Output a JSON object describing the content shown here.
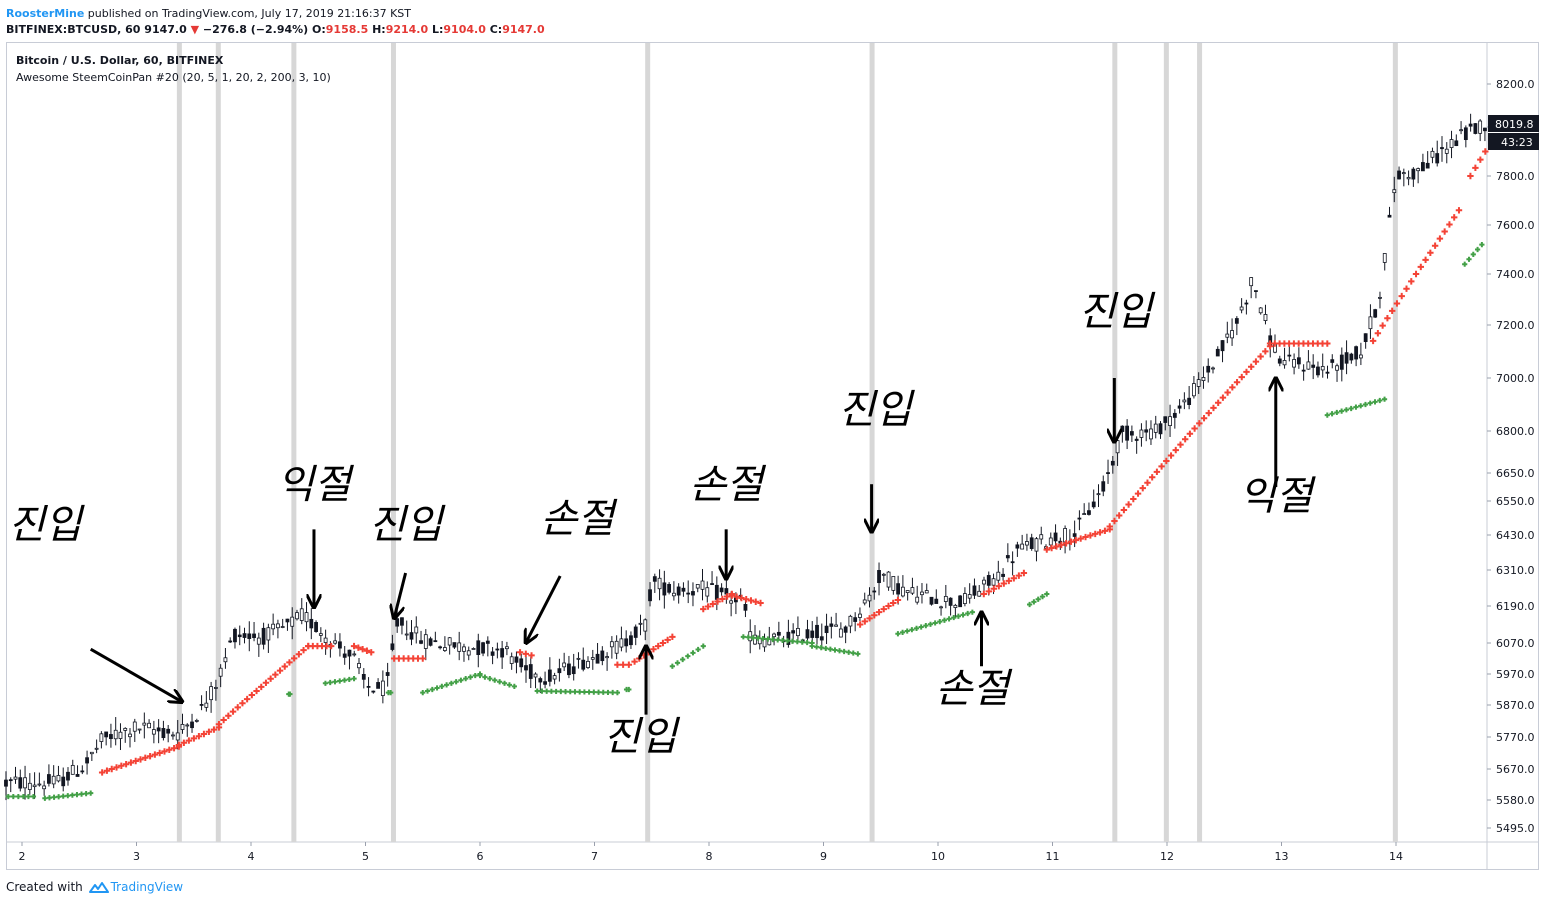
{
  "header": {
    "user": "RoosterMine",
    "published_text": "published on TradingView.com, July 17, 2019 21:16:37 KST"
  },
  "symbol_bar": {
    "symbol": "BITFINEX:BTCUSD, 60",
    "last": "9147.0",
    "change": "−276.8 (−2.94%)",
    "open_label": "O:",
    "open": "9158.5",
    "high_label": "H:",
    "high": "9214.0",
    "low_label": "L:",
    "low": "9104.0",
    "close_label": "C:",
    "close": "9147.0"
  },
  "legend": {
    "title": "Bitcoin / U.S. Dollar, 60, BITFINEX",
    "indicator": "Awesome SteemCoinPan #20 (20, 5, 1, 20, 2, 200, 3, 10)"
  },
  "price_badge": "8019.8",
  "timer_badge": "43:23",
  "footer": {
    "created_with": "Created with",
    "brand": "TradingView"
  },
  "colors": {
    "candle": "#131722",
    "sar_bear": "#f44336",
    "sar_bull": "#43a047",
    "highlight_bars": "#d7d7d7",
    "arrow": "#000000",
    "down_triangle": "#e53935"
  },
  "chart_data": {
    "type": "candlestick",
    "x_label_unit": "day of month",
    "yticks": [
      5495,
      5580,
      5670,
      5770,
      5870,
      5970,
      6070,
      6190,
      6310,
      6430,
      6550,
      6650,
      6800,
      7000,
      7200,
      7400,
      7600,
      7800,
      8000,
      8200
    ],
    "ytick_labels": [
      "5495.0",
      "5580.0",
      "5670.0",
      "5770.0",
      "5870.0",
      "5970.0",
      "6070.0",
      "6190.0",
      "6310.0",
      "6430.0",
      "6550.0",
      "6650.0",
      "6800.0",
      "7000.0",
      "7200.0",
      "7400.0",
      "7600.0",
      "7800.0",
      "8000.0",
      "8200.0"
    ],
    "xtick_days": [
      2,
      3,
      4,
      5,
      6,
      7,
      8,
      9,
      10,
      11,
      12,
      13,
      14
    ],
    "xtick_labels": [
      "2",
      "3",
      "4",
      "5",
      "6",
      "7",
      "8",
      "9",
      "10",
      "11",
      "12",
      "13",
      "14"
    ],
    "x_range": [
      1.86,
      14.85
    ],
    "highlight_days": [
      3.37,
      3.71,
      4.37,
      5.24,
      7.46,
      9.42,
      11.54,
      11.99,
      12.28,
      13.99
    ],
    "price_path": [
      [
        1.86,
        5630
      ],
      [
        2.3,
        5630
      ],
      [
        2.55,
        5680
      ],
      [
        2.7,
        5760
      ],
      [
        3.0,
        5800
      ],
      [
        3.37,
        5780
      ],
      [
        3.6,
        5870
      ],
      [
        3.72,
        5960
      ],
      [
        3.85,
        6100
      ],
      [
        4.1,
        6090
      ],
      [
        4.3,
        6120
      ],
      [
        4.45,
        6160
      ],
      [
        4.7,
        6080
      ],
      [
        4.9,
        6020
      ],
      [
        5.0,
        5930
      ],
      [
        5.18,
        5920
      ],
      [
        5.28,
        6140
      ],
      [
        5.5,
        6080
      ],
      [
        5.8,
        6060
      ],
      [
        6.2,
        6050
      ],
      [
        6.4,
        5980
      ],
      [
        6.6,
        5960
      ],
      [
        6.9,
        6010
      ],
      [
        7.25,
        6070
      ],
      [
        7.45,
        6130
      ],
      [
        7.5,
        6270
      ],
      [
        7.7,
        6240
      ],
      [
        7.9,
        6250
      ],
      [
        8.1,
        6230
      ],
      [
        8.3,
        6200
      ],
      [
        8.37,
        6080
      ],
      [
        8.6,
        6080
      ],
      [
        8.9,
        6100
      ],
      [
        9.2,
        6120
      ],
      [
        9.42,
        6230
      ],
      [
        9.5,
        6300
      ],
      [
        9.7,
        6240
      ],
      [
        9.9,
        6220
      ],
      [
        10.2,
        6200
      ],
      [
        10.5,
        6280
      ],
      [
        10.7,
        6380
      ],
      [
        11.0,
        6420
      ],
      [
        11.2,
        6440
      ],
      [
        11.45,
        6600
      ],
      [
        11.6,
        6790
      ],
      [
        11.9,
        6800
      ],
      [
        12.15,
        6900
      ],
      [
        12.4,
        7050
      ],
      [
        12.6,
        7200
      ],
      [
        12.75,
        7380
      ],
      [
        12.9,
        7150
      ],
      [
        13.0,
        7060
      ],
      [
        13.2,
        7050
      ],
      [
        13.4,
        7030
      ],
      [
        13.7,
        7100
      ],
      [
        13.85,
        7300
      ],
      [
        14.0,
        7800
      ],
      [
        14.2,
        7820
      ],
      [
        14.4,
        7900
      ],
      [
        14.6,
        7970
      ],
      [
        14.78,
        8020
      ]
    ],
    "sar_bear_segments": [
      {
        "from": 2.7,
        "to": 3.37,
        "start": 5660,
        "end": 5740
      },
      {
        "from": 3.37,
        "to": 3.72,
        "start": 5745,
        "end": 5800
      },
      {
        "from": 3.72,
        "to": 4.5,
        "start": 5810,
        "end": 6060
      },
      {
        "from": 4.5,
        "to": 4.7,
        "start": 6060,
        "end": 6060
      },
      {
        "from": 4.9,
        "to": 5.05,
        "start": 6060,
        "end": 6040
      },
      {
        "from": 5.25,
        "to": 5.5,
        "start": 6020,
        "end": 6020
      },
      {
        "from": 6.35,
        "to": 6.45,
        "start": 6040,
        "end": 6030
      },
      {
        "from": 7.2,
        "to": 7.3,
        "start": 6000,
        "end": 6000
      },
      {
        "from": 7.35,
        "to": 7.68,
        "start": 6010,
        "end": 6090
      },
      {
        "from": 7.95,
        "to": 8.2,
        "start": 6180,
        "end": 6230
      },
      {
        "from": 8.2,
        "to": 8.45,
        "start": 6225,
        "end": 6200
      },
      {
        "from": 9.32,
        "to": 9.65,
        "start": 6130,
        "end": 6210
      },
      {
        "from": 10.4,
        "to": 10.75,
        "start": 6230,
        "end": 6300
      },
      {
        "from": 10.95,
        "to": 11.5,
        "start": 6380,
        "end": 6450
      },
      {
        "from": 11.5,
        "to": 12.9,
        "start": 6460,
        "end": 7120
      },
      {
        "from": 12.9,
        "to": 13.4,
        "start": 7130,
        "end": 7130
      },
      {
        "from": 13.8,
        "to": 14.55,
        "start": 7140,
        "end": 7660
      },
      {
        "from": 14.65,
        "to": 14.78,
        "start": 7800,
        "end": 7900
      }
    ],
    "sar_bull_segments": [
      {
        "from": 1.88,
        "to": 2.1,
        "start": 5590,
        "end": 5590
      },
      {
        "from": 2.2,
        "to": 2.6,
        "start": 5585,
        "end": 5600
      },
      {
        "from": 4.33,
        "to": 4.34,
        "start": 5905,
        "end": 5905
      },
      {
        "from": 4.65,
        "to": 4.9,
        "start": 5940,
        "end": 5955
      },
      {
        "from": 5.2,
        "to": 5.22,
        "start": 5910,
        "end": 5910
      },
      {
        "from": 5.5,
        "to": 6.0,
        "start": 5910,
        "end": 5970
      },
      {
        "from": 6.0,
        "to": 6.3,
        "start": 5965,
        "end": 5930
      },
      {
        "from": 6.5,
        "to": 7.2,
        "start": 5915,
        "end": 5910
      },
      {
        "from": 7.28,
        "to": 7.3,
        "start": 5920,
        "end": 5920
      },
      {
        "from": 7.68,
        "to": 7.95,
        "start": 5995,
        "end": 6060
      },
      {
        "from": 8.3,
        "to": 8.9,
        "start": 6090,
        "end": 6070
      },
      {
        "from": 8.9,
        "to": 9.3,
        "start": 6060,
        "end": 6035
      },
      {
        "from": 9.65,
        "to": 10.3,
        "start": 6100,
        "end": 6170
      },
      {
        "from": 10.8,
        "to": 10.95,
        "start": 6195,
        "end": 6230
      },
      {
        "from": 13.4,
        "to": 13.9,
        "start": 6860,
        "end": 6920
      },
      {
        "from": 14.6,
        "to": 14.75,
        "start": 7440,
        "end": 7520
      }
    ]
  },
  "annotations": [
    {
      "text": "진입",
      "day": 2.2,
      "price": 6420,
      "arrow_from": [
        2.6,
        6050
      ],
      "arrow_to": [
        3.4,
        5880
      ]
    },
    {
      "text": "익절",
      "day": 4.55,
      "price": 6560,
      "arrow_from": [
        4.55,
        6450
      ],
      "arrow_to": [
        4.55,
        6185
      ]
    },
    {
      "text": "진입",
      "day": 5.35,
      "price": 6420,
      "arrow_from": [
        5.35,
        6300
      ],
      "arrow_to": [
        5.25,
        6150
      ]
    },
    {
      "text": "손절",
      "day": 6.85,
      "price": 6440,
      "arrow_from": [
        6.7,
        6290
      ],
      "arrow_to": [
        6.4,
        6070
      ]
    },
    {
      "text": "손절",
      "day": 8.15,
      "price": 6560,
      "arrow_from": [
        8.15,
        6450
      ],
      "arrow_to": [
        8.15,
        6280
      ]
    },
    {
      "text": "진입",
      "day": 7.4,
      "price": 5730,
      "arrow_from": [
        7.45,
        5840
      ],
      "arrow_to": [
        7.45,
        6060
      ]
    },
    {
      "text": "진입",
      "day": 9.45,
      "price": 6830,
      "arrow_from": [
        9.42,
        6610
      ],
      "arrow_to": [
        9.42,
        6440
      ]
    },
    {
      "text": "손절",
      "day": 10.3,
      "price": 5880,
      "arrow_from": [
        10.38,
        5995
      ],
      "arrow_to": [
        10.38,
        6170
      ]
    },
    {
      "text": "진입",
      "day": 11.55,
      "price": 7200,
      "arrow_from": [
        11.54,
        7000
      ],
      "arrow_to": [
        11.54,
        6760
      ]
    },
    {
      "text": "익절",
      "day": 12.95,
      "price": 6520,
      "arrow_from": [
        12.95,
        6600
      ],
      "arrow_to": [
        12.95,
        7000
      ]
    }
  ]
}
